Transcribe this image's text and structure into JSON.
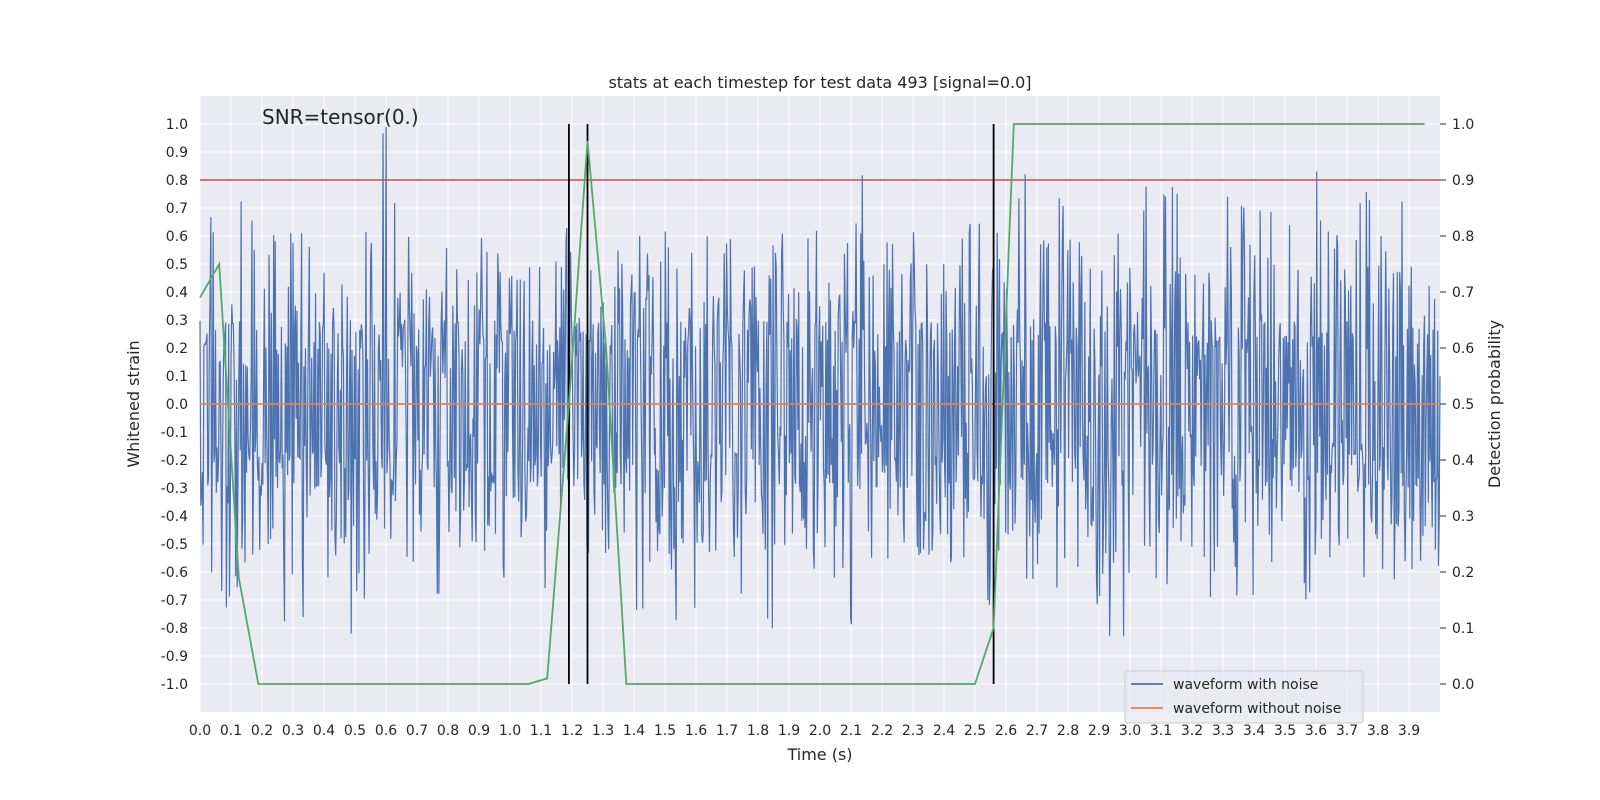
{
  "chart_data": {
    "type": "line",
    "title": "stats at each timestep for test data 493 [signal=0.0]",
    "annotation": "SNR=tensor(0.)",
    "xlabel": "Time (s)",
    "ylabel_left": "Whitened strain",
    "ylabel_right": "Detection probability",
    "xlim": [
      0.0,
      4.0
    ],
    "ylim_left": [
      -1.1,
      1.1
    ],
    "ylim_right": [
      -0.05,
      1.05
    ],
    "grid": true,
    "legend_position": "bottom-right",
    "x_ticks": [
      "0.0",
      "0.1",
      "0.2",
      "0.3",
      "0.4",
      "0.5",
      "0.6",
      "0.7",
      "0.8",
      "0.9",
      "1.0",
      "1.1",
      "1.2",
      "1.3",
      "1.4",
      "1.5",
      "1.6",
      "1.7",
      "1.8",
      "1.9",
      "2.0",
      "2.1",
      "2.2",
      "2.3",
      "2.4",
      "2.5",
      "2.6",
      "2.7",
      "2.8",
      "2.9",
      "3.0",
      "3.1",
      "3.2",
      "3.3",
      "3.4",
      "3.5",
      "3.6",
      "3.7",
      "3.8",
      "3.9"
    ],
    "y_ticks_left": [
      "-1.0",
      "-0.9",
      "-0.8",
      "-0.7",
      "-0.6",
      "-0.5",
      "-0.4",
      "-0.3",
      "-0.2",
      "-0.1",
      "0.0",
      "0.1",
      "0.2",
      "0.3",
      "0.4",
      "0.5",
      "0.6",
      "0.7",
      "0.8",
      "0.9",
      "1.0"
    ],
    "y_ticks_right": [
      "0.0",
      "0.1",
      "0.2",
      "0.3",
      "0.4",
      "0.5",
      "0.6",
      "0.7",
      "0.8",
      "0.9",
      "1.0"
    ],
    "threshold_line": {
      "y": 0.8,
      "color": "#c44e52"
    },
    "vertical_lines": {
      "x": [
        1.19,
        1.25,
        2.56
      ],
      "ymin": -1.0,
      "ymax": 1.0,
      "color": "#000000"
    },
    "series": [
      {
        "name": "waveform with noise",
        "color": "#4c72b0",
        "axis": "left",
        "x_range": [
          0.0,
          4.0
        ],
        "sample_count": 1600,
        "upper_envelope": [
          0.68,
          0.52,
          0.8,
          0.6,
          0.65,
          0.63,
          0.57,
          0.49,
          0.55,
          0.7,
          1.0,
          0.62,
          0.53,
          0.69,
          0.55,
          0.62,
          0.57,
          0.49,
          0.53,
          0.57,
          0.68,
          0.64,
          0.57,
          0.55,
          0.7,
          0.57,
          0.62,
          0.58,
          0.6,
          0.59,
          0.49,
          0.55,
          0.72,
          0.47,
          0.68,
          0.48,
          0.6,
          0.82,
          0.65,
          0.58,
          0.7,
          0.57,
          0.63,
          0.72,
          0.64,
          0.55,
          0.92,
          0.6,
          0.76,
          0.64,
          0.68,
          0.62,
          0.57,
          0.79,
          0.88,
          0.83,
          0.59,
          0.87,
          0.76,
          0.82,
          0.71,
          0.65,
          0.67,
          0.83,
          0.86,
          0.8,
          0.61,
          0.76,
          0.66,
          0.61
        ],
        "lower_envelope": [
          -0.62,
          -0.75,
          -0.65,
          -0.58,
          -0.89,
          -0.57,
          -0.62,
          -0.86,
          -0.58,
          -0.56,
          -0.64,
          -0.79,
          -0.52,
          -0.56,
          -0.62,
          -0.58,
          -0.66,
          -0.6,
          -0.63,
          -0.55,
          -0.58,
          -0.93,
          -0.7,
          -0.82,
          -0.56,
          -0.6,
          -0.68,
          -0.81,
          -0.57,
          -0.6,
          -0.64,
          -0.82,
          -0.58,
          -0.66,
          -0.62,
          -0.55,
          -0.58,
          -0.62,
          -0.78,
          -0.7,
          -0.63,
          -0.67,
          -0.59,
          -0.86,
          -0.95,
          -0.65,
          -0.86,
          -0.58,
          -0.91,
          -0.64,
          -0.7,
          -0.6,
          -0.55,
          -0.76,
          -0.63,
          -0.57,
          -0.62,
          -0.64,
          -0.6,
          -0.6
        ]
      },
      {
        "name": "waveform without noise",
        "color": "#dd8452",
        "axis": "left",
        "x": [
          0.0,
          4.0
        ],
        "y": [
          0.0,
          0.0
        ]
      },
      {
        "color": "#55a868",
        "axis": "right",
        "x": [
          0.0,
          0.062,
          0.125,
          0.188,
          0.25,
          0.5,
          1.0,
          1.06,
          1.12,
          1.19,
          1.25,
          1.31,
          1.375,
          1.44,
          1.75,
          2.25,
          2.5,
          2.56,
          2.625,
          3.0,
          3.5,
          3.95
        ],
        "y": [
          0.69,
          0.75,
          0.19,
          0.0,
          0.0,
          0.0,
          0.0,
          0.0,
          0.01,
          0.5,
          0.97,
          0.6,
          0.0,
          0.0,
          0.0,
          0.0,
          0.0,
          0.1,
          1.0,
          1.0,
          1.0,
          1.0
        ]
      }
    ]
  }
}
